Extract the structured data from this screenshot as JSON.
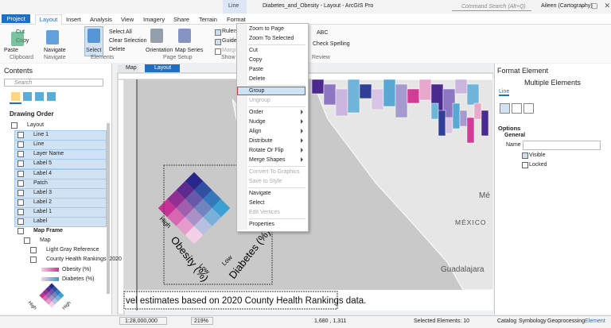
{
  "title_bar": {
    "contextual_tab": "Line",
    "title": "Diabetes_and_Obesity - Layout - ArcGIS Pro",
    "search": "Command Search (Alt+Q)",
    "user": "Aileen (Cartography)"
  },
  "tabs": [
    "Project",
    "Layout",
    "Insert",
    "Analysis",
    "View",
    "Imagery",
    "Share",
    "Terrain",
    "Format"
  ],
  "ribbon": {
    "buttons": [
      "Paste",
      "Cut",
      "Copy",
      "Navigate",
      "Select",
      "Select All",
      "Clear Selection",
      "Delete",
      "Orientation",
      "Map Series",
      "Rulers",
      "Guides",
      "Margins",
      "ABC",
      "Check Spelling"
    ],
    "groups": [
      "Clipboard",
      "Navigate",
      "Elements",
      "Page Setup",
      "Show",
      "Review"
    ]
  },
  "contents": {
    "title": "Contents",
    "search": "Search",
    "heading": "Drawing Order",
    "tree": [
      {
        "label": "Layout",
        "level": 0
      },
      {
        "label": "Line 1",
        "level": 1,
        "selected": true
      },
      {
        "label": "Line",
        "level": 1,
        "selected": true
      },
      {
        "label": "Layer Name",
        "level": 1,
        "selected": true
      },
      {
        "label": "Label 5",
        "level": 1,
        "selected": true
      },
      {
        "label": "Label 4",
        "level": 1,
        "selected": true
      },
      {
        "label": "Patch",
        "level": 1,
        "selected": true
      },
      {
        "label": "Label 3",
        "level": 1,
        "selected": true
      },
      {
        "label": "Label 2",
        "level": 1,
        "selected": true
      },
      {
        "label": "Label 1",
        "level": 1,
        "selected": true
      },
      {
        "label": "Label",
        "level": 1,
        "selected": true
      },
      {
        "label": "Map Frame",
        "level": 1,
        "bold": true
      },
      {
        "label": "Map",
        "level": 2
      },
      {
        "label": "Light Gray Reference",
        "level": 3
      },
      {
        "label": "County Health Rankings, 2020",
        "level": 3
      },
      {
        "label": "Obesity (%)",
        "level": 4
      },
      {
        "label": "Diabetes (%)",
        "level": 4
      }
    ],
    "legend_labels": [
      "High",
      "High"
    ]
  },
  "view_tabs": [
    "Map",
    "Layout"
  ],
  "map": {
    "labels": [
      "Mé",
      "MÉXICO",
      "Guadalajara"
    ],
    "footer_text": "vel estimates based on 2020 County Health Rankings data.",
    "legend": {
      "left_axis": "Obesity (%)",
      "right_axis": "Diabetes (%)",
      "ticks": [
        "High",
        "Low",
        "Low",
        "High"
      ]
    }
  },
  "menu": {
    "groups": [
      [
        {
          "label": "Zoom to Page"
        },
        {
          "label": "Zoom To Selected"
        }
      ],
      [
        {
          "label": "Cut"
        },
        {
          "label": "Copy"
        },
        {
          "label": "Paste"
        },
        {
          "label": "Delete"
        }
      ],
      [
        {
          "label": "Group",
          "highlighted": true
        },
        {
          "label": "Ungroup",
          "disabled": true
        }
      ],
      [
        {
          "label": "Order",
          "submenu": true
        },
        {
          "label": "Nudge",
          "submenu": true
        },
        {
          "label": "Align",
          "submenu": true
        },
        {
          "label": "Distribute",
          "submenu": true
        },
        {
          "label": "Rotate Or Flip",
          "submenu": true
        },
        {
          "label": "Merge Shapes",
          "submenu": true
        }
      ],
      [
        {
          "label": "Convert To Graphics",
          "disabled": true
        },
        {
          "label": "Save to Style",
          "disabled": true
        }
      ],
      [
        {
          "label": "Navigate"
        },
        {
          "label": "Select"
        },
        {
          "label": "Edit Vertices",
          "disabled": true
        }
      ],
      [
        {
          "label": "Properties"
        }
      ]
    ]
  },
  "format_pane": {
    "title": "Format Element",
    "subtitle": "Multiple Elements",
    "tab": "Line",
    "section": "Options",
    "subsection": "General",
    "name_label": "Name",
    "visible": "Visible",
    "locked": "Locked"
  },
  "bottom_tabs": [
    "Catalog",
    "Symbology",
    "Geoprocessing",
    "Element"
  ],
  "status": {
    "scale": "1:28,000,000",
    "zoom": "219%",
    "coordinates": "1,680 , 1,311",
    "selected": "Selected Elements: 10"
  }
}
